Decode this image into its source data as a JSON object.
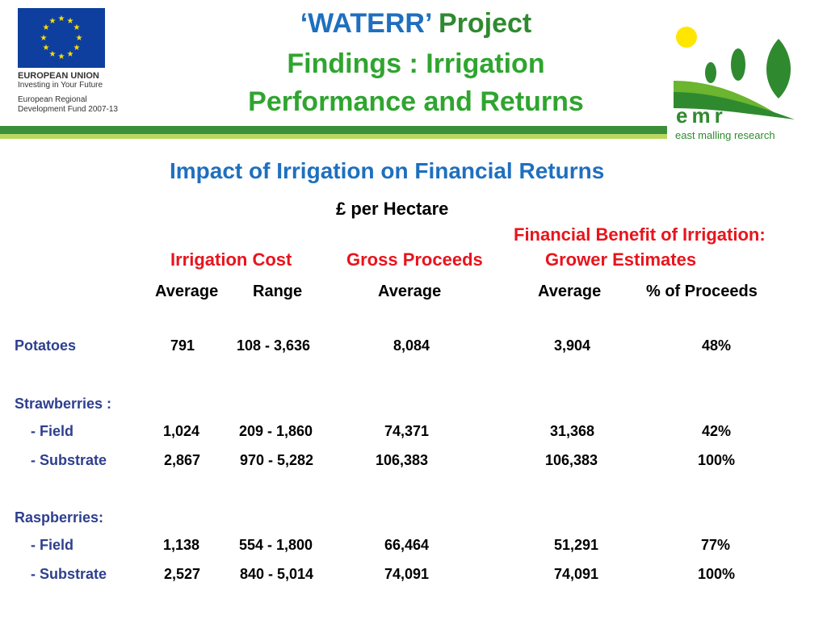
{
  "eu_logo": {
    "title": "EUROPEAN UNION",
    "line2": "Investing in Your Future",
    "line3": "European Regional",
    "line4": "Development Fund 2007-13"
  },
  "header": {
    "title_part1": "‘WATERR’",
    "title_part2": " Project",
    "title_line2": "Findings : Irrigation",
    "title_line3": "Performance and Returns"
  },
  "emr_logo": {
    "mark": "emr",
    "name": "east malling research"
  },
  "subtitle": "Impact of Irrigation on Financial Returns",
  "unit": "£ per Hectare",
  "column_groups": {
    "irrigation_cost": "Irrigation Cost",
    "gross_proceeds": "Gross Proceeds",
    "benefit_line1": "Financial Benefit  of Irrigation:",
    "benefit_line2": "Grower  Estimates"
  },
  "sub_headers": {
    "cost_average": "Average",
    "cost_range": "Range",
    "proceeds_average": "Average",
    "benefit_average": "Average",
    "benefit_pct": "% of Proceeds"
  },
  "groups": {
    "strawberries": "Strawberries :",
    "raspberries": "Raspberries:"
  },
  "rows": [
    {
      "label": "Potatoes",
      "cost_avg": "791",
      "range": "108 - 3,636",
      "proceeds": "8,084",
      "benefit": "3,904",
      "pct": "48%"
    },
    {
      "label": "- Field",
      "cost_avg": "1,024",
      "range": "209 - 1,860",
      "proceeds": "74,371",
      "benefit": "31,368",
      "pct": "42%"
    },
    {
      "label": "- Substrate",
      "cost_avg": "2,867",
      "range": "970 - 5,282",
      "proceeds": "106,383",
      "benefit": "106,383",
      "pct": "100%"
    },
    {
      "label": "- Field",
      "cost_avg": "1,138",
      "range": "554 - 1,800",
      "proceeds": "66,464",
      "benefit": "51,291",
      "pct": "77%"
    },
    {
      "label": "- Substrate",
      "cost_avg": "2,527",
      "range": "840 - 5,014",
      "proceeds": "74,091",
      "benefit": "74,091",
      "pct": "100%"
    }
  ],
  "colors": {
    "title_blue": "#1f6fbf",
    "title_green": "#2fa52f",
    "header_red": "#e8141c",
    "row_label_navy": "#2e3f8f",
    "bar_green": "#3b8f3b"
  }
}
